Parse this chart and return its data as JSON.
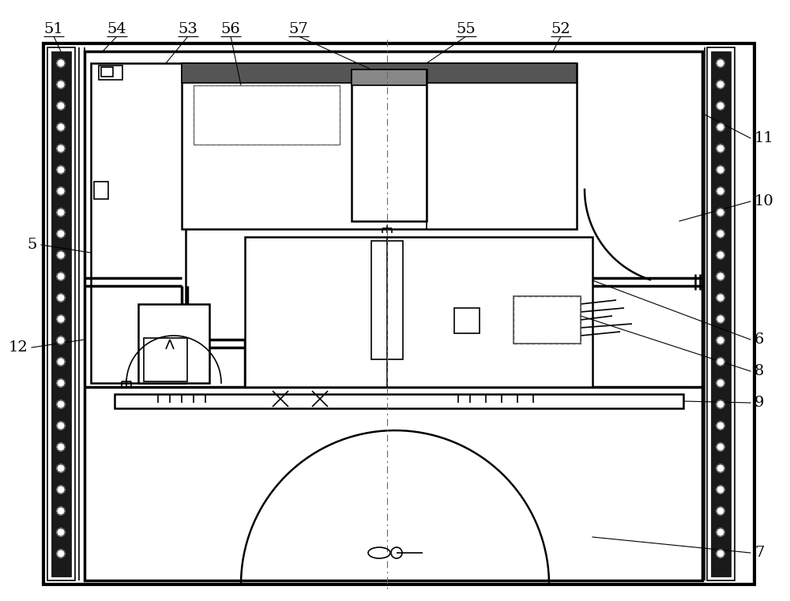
{
  "bg_color": "#ffffff",
  "line_color": "#000000",
  "fig_width": 10.0,
  "fig_height": 7.61,
  "dpi": 100
}
